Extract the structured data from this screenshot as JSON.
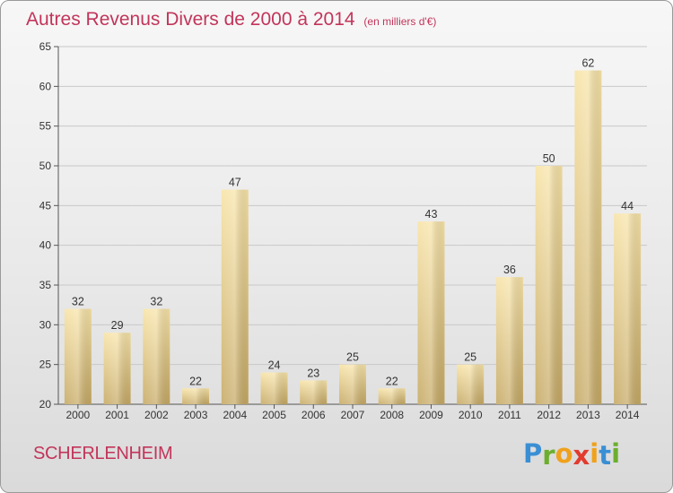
{
  "title": {
    "main": "Autres Revenus Divers de 2000 à 2014",
    "unit": "(en milliers d'€)"
  },
  "commune": "SCHERLENHEIM",
  "logo": {
    "letters": [
      "P",
      "r",
      "o",
      "x",
      "i",
      "t",
      "i"
    ],
    "colors": [
      "#3a8fd4",
      "#6cae2e",
      "#f0a11c",
      "#e23b2e",
      "#f0a11c",
      "#3a8fd4",
      "#6cae2e"
    ]
  },
  "colors": {
    "title": "#c2355a",
    "bar_light": "#f7e2a4",
    "bar_dark": "#c9ad68"
  },
  "chart_data": {
    "type": "bar",
    "categories": [
      "2000",
      "2001",
      "2002",
      "2003",
      "2004",
      "2005",
      "2006",
      "2007",
      "2008",
      "2009",
      "2010",
      "2011",
      "2012",
      "2013",
      "2014"
    ],
    "values": [
      32,
      29,
      32,
      22,
      47,
      24,
      23,
      25,
      22,
      43,
      25,
      36,
      50,
      62,
      44
    ],
    "data_labels": [
      "32",
      "29",
      "32",
      "22",
      "47",
      "24",
      "23",
      "25",
      "22",
      "43",
      "25",
      "36",
      "50",
      "62",
      "44"
    ],
    "ylim": [
      20,
      65
    ],
    "yticks": [
      20,
      25,
      30,
      35,
      40,
      45,
      50,
      55,
      60,
      65
    ],
    "grid": true,
    "xlabel": "",
    "ylabel": ""
  }
}
